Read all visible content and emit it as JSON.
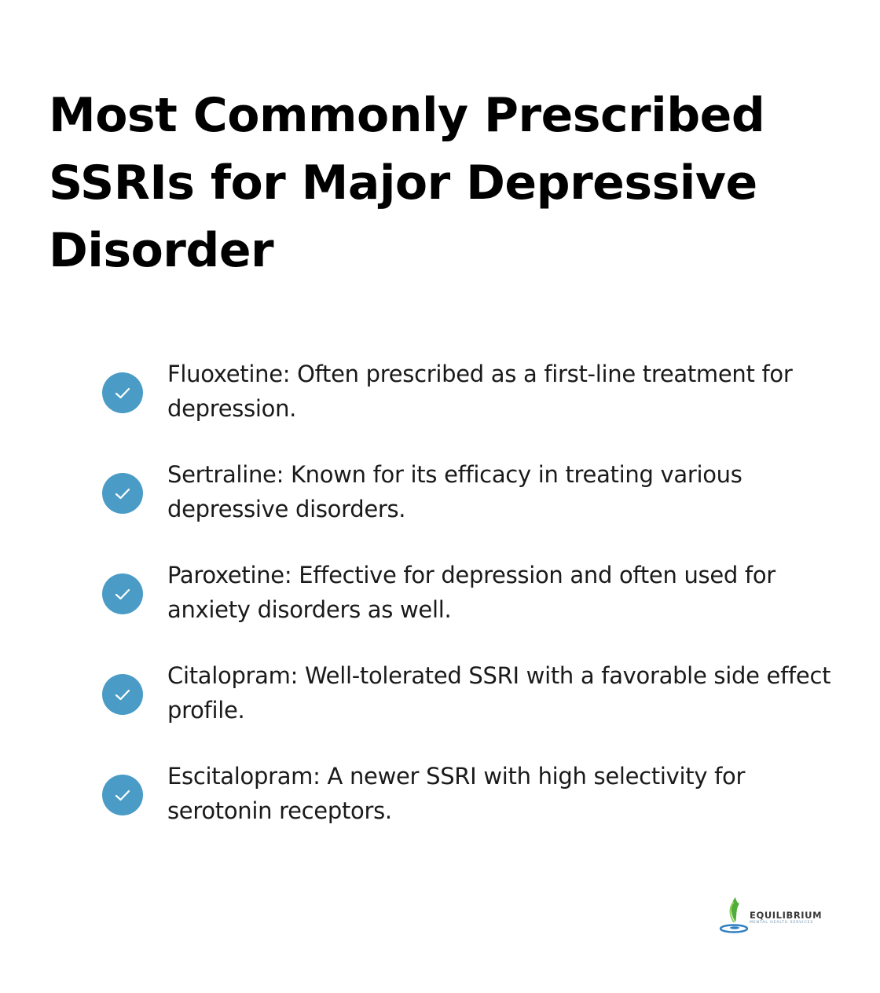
{
  "title": "Most Commonly Prescribed SSRIs for Major Depressive Disorder",
  "items": [
    {
      "text": "Fluoxetine: Often prescribed as a first-line treatment for depression.",
      "icon": "check-icon"
    },
    {
      "text": "Sertraline: Known for its efficacy in treating various depressive disorders.",
      "icon": "check-icon"
    },
    {
      "text": "Paroxetine: Effective for depression and often used for anxiety disorders as well.",
      "icon": "check-icon"
    },
    {
      "text": "Citalopram: Well-tolerated SSRI with a favorable side effect profile.",
      "icon": "check-icon"
    },
    {
      "text": "Escitalopram: A newer SSRI with high selectivity for serotonin receptors.",
      "icon": "check-icon"
    }
  ],
  "logo": {
    "name": "EQUILIBRIUM",
    "subtitle": "MENTAL HEALTH SERVICES"
  },
  "colors": {
    "accent": "#4a9cc6",
    "title": "#000000",
    "text": "#1a1a1a",
    "logo_green": "#4fae3a",
    "logo_blue": "#2f7fc1"
  }
}
